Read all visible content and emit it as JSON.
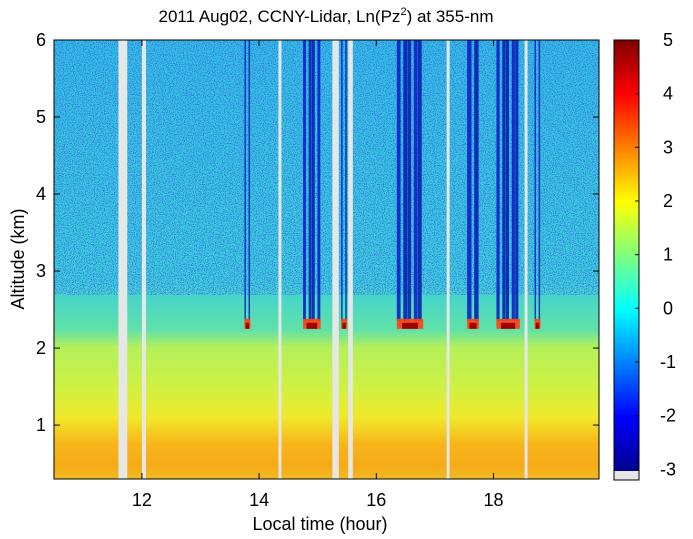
{
  "chart_data": {
    "type": "heatmap",
    "title_parts": {
      "pre": "2011 Aug02, CCNY-Lidar, Ln(Pz",
      "sup": "2",
      "post": ") at 355-nm"
    },
    "xlabel": "Local time (hour)",
    "ylabel": "Altitude (km)",
    "xlim": [
      10.5,
      19.8
    ],
    "ylim": [
      0.3,
      6.0
    ],
    "xticks": [
      12,
      14,
      16,
      18
    ],
    "yticks": [
      1,
      2,
      3,
      4,
      5,
      6
    ],
    "colorbar": {
      "range": [
        -3.2,
        5.0
      ],
      "ticks": [
        -3,
        -2,
        -1,
        0,
        1,
        2,
        3,
        4,
        5
      ],
      "colormap": "jet",
      "missing_color": "#e6e6e6"
    },
    "data_gaps_hours": [
      [
        11.6,
        11.75
      ],
      [
        12.0,
        12.07
      ],
      [
        14.33,
        14.38
      ],
      [
        15.25,
        15.36
      ],
      [
        15.52,
        15.6
      ],
      [
        17.2,
        17.25
      ],
      [
        18.53,
        18.57
      ]
    ],
    "boundary_layer_top_km": 2.3,
    "cloud_base_km": 2.25,
    "cloud_columns_hours": [
      [
        13.75,
        13.85
      ],
      [
        14.75,
        15.05
      ],
      [
        15.4,
        15.5
      ],
      [
        16.35,
        16.8
      ],
      [
        17.55,
        17.75
      ],
      [
        18.05,
        18.45
      ],
      [
        18.7,
        18.8
      ]
    ],
    "value_regions": [
      {
        "region": "surface layer 0.3-0.9 km",
        "value": 2.5
      },
      {
        "region": "boundary layer 0.9-2.3 km",
        "value": 1.5
      },
      {
        "region": "free troposphere above 2.3 km",
        "value": 0.0
      },
      {
        "region": "cloud base",
        "value": 4.5
      },
      {
        "region": "above clouds",
        "value": -3.0
      }
    ]
  }
}
